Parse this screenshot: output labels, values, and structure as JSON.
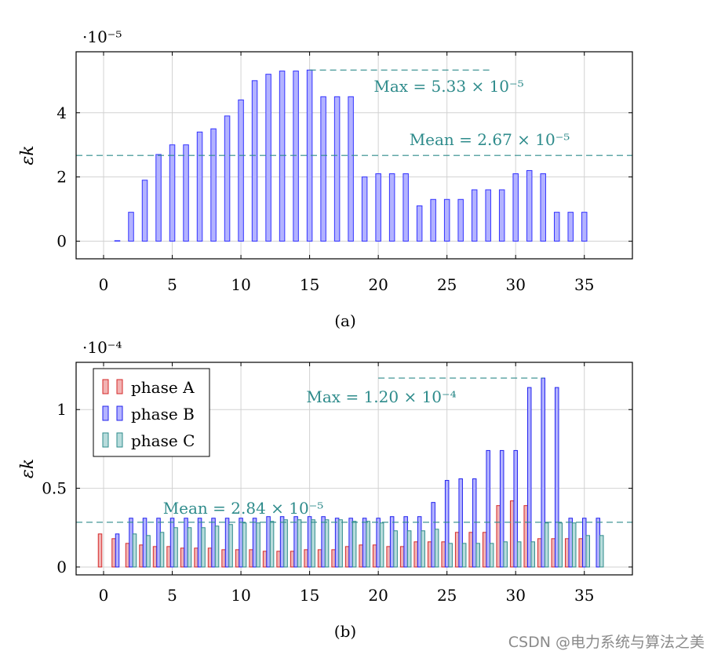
{
  "watermark": "CSDN @电力系统与算法之美",
  "chart_data": [
    {
      "type": "bar",
      "caption": "(a)",
      "ylabel": "ε_k",
      "scale_label": "·10⁻⁵",
      "grid": true,
      "xlim": [
        -2,
        38.5
      ],
      "ylim": [
        -0.55,
        5.9
      ],
      "x_ticks": [
        0,
        5,
        10,
        15,
        20,
        25,
        30,
        35
      ],
      "y_ticks": [
        0,
        2,
        4
      ],
      "x": [
        1,
        2,
        3,
        4,
        5,
        6,
        7,
        8,
        9,
        10,
        11,
        12,
        13,
        14,
        15,
        16,
        17,
        18,
        19,
        20,
        21,
        22,
        23,
        24,
        25,
        26,
        27,
        28,
        29,
        30,
        31,
        32,
        33,
        34,
        35
      ],
      "series": [
        {
          "color": "#3333ff",
          "fill": "#b3b3ff",
          "values": [
            0,
            0.9,
            1.9,
            2.7,
            3.0,
            3.0,
            3.4,
            3.5,
            3.9,
            4.4,
            5.0,
            5.2,
            5.3,
            5.3,
            5.33,
            4.5,
            4.5,
            4.5,
            2.0,
            2.1,
            2.1,
            2.1,
            1.1,
            1.3,
            1.3,
            1.3,
            1.6,
            1.6,
            1.6,
            2.1,
            2.2,
            2.1,
            0.9,
            0.9,
            0.9
          ]
        }
      ],
      "annotations": [
        {
          "type": "hline",
          "text": "Max = 5.33 × 10⁻⁵",
          "y": 5.33,
          "x_from": 15,
          "x_to": 28.2,
          "color": "#2e8b8b"
        },
        {
          "type": "hline",
          "text": "Mean = 2.67 × 10⁻⁵",
          "y": 2.67,
          "x_from": -2,
          "x_to": 38.5,
          "color": "#2e8b8b"
        }
      ]
    },
    {
      "type": "bar",
      "caption": "(b)",
      "ylabel": "ε_k",
      "scale_label": "·10⁻⁴",
      "grid": true,
      "legend_position": "top-left",
      "xlim": [
        -2,
        38.5
      ],
      "ylim": [
        -0.05,
        1.3
      ],
      "x_ticks": [
        0,
        5,
        10,
        15,
        20,
        25,
        30,
        35
      ],
      "y_ticks": [
        0,
        0.5,
        1
      ],
      "y_tick_labels": [
        "0",
        "0.5",
        "1"
      ],
      "x": [
        0,
        1,
        2,
        3,
        4,
        5,
        6,
        7,
        8,
        9,
        10,
        11,
        12,
        13,
        14,
        15,
        16,
        17,
        18,
        19,
        20,
        21,
        22,
        23,
        24,
        25,
        26,
        27,
        28,
        29,
        30,
        31,
        32,
        33,
        34,
        35,
        36
      ],
      "series": [
        {
          "name": "phase A",
          "color": "#d42a2a",
          "fill": "#f2b3b3",
          "values": [
            0.21,
            0.18,
            0.15,
            0.14,
            0.13,
            0.13,
            0.12,
            0.12,
            0.12,
            0.11,
            0.11,
            0.11,
            0.1,
            0.1,
            0.1,
            0.11,
            0.11,
            0.11,
            0.13,
            0.14,
            0.14,
            0.13,
            0.13,
            0.16,
            0.16,
            0.16,
            0.22,
            0.22,
            0.22,
            0.39,
            0.42,
            0.39,
            0.18,
            0.18,
            0.18,
            0.18,
            null
          ]
        },
        {
          "name": "phase B",
          "color": "#2222ee",
          "fill": "#b3b3ff",
          "values": [
            null,
            0.21,
            0.31,
            0.31,
            0.31,
            0.31,
            0.31,
            0.31,
            0.31,
            0.31,
            0.31,
            0.31,
            0.32,
            0.32,
            0.32,
            0.32,
            0.32,
            0.31,
            0.31,
            0.31,
            0.31,
            0.32,
            0.32,
            0.32,
            0.41,
            0.55,
            0.56,
            0.56,
            0.74,
            0.74,
            0.74,
            1.14,
            1.2,
            1.14,
            0.31,
            0.31,
            0.31
          ]
        },
        {
          "name": "phase C",
          "color": "#2e8b8b",
          "fill": "#b8dcdc",
          "values": [
            null,
            null,
            0.21,
            0.2,
            0.22,
            0.25,
            0.25,
            0.25,
            0.26,
            0.27,
            0.28,
            0.28,
            0.29,
            0.3,
            0.3,
            0.3,
            0.3,
            0.3,
            0.29,
            0.29,
            0.28,
            0.23,
            0.23,
            0.23,
            0.24,
            0.15,
            0.15,
            0.15,
            0.15,
            0.16,
            0.16,
            0.16,
            0.28,
            0.28,
            0.28,
            0.2,
            0.2
          ]
        }
      ],
      "annotations": [
        {
          "type": "hline",
          "text": "Max = 1.20 × 10⁻⁴",
          "y": 1.2,
          "x_from": 20,
          "x_to": 32,
          "color": "#2e8b8b"
        },
        {
          "type": "hline",
          "text": "Mean = 2.84 × 10⁻⁵",
          "y": 0.284,
          "x_from": -2,
          "x_to": 38.5,
          "color": "#2e8b8b"
        }
      ]
    }
  ]
}
